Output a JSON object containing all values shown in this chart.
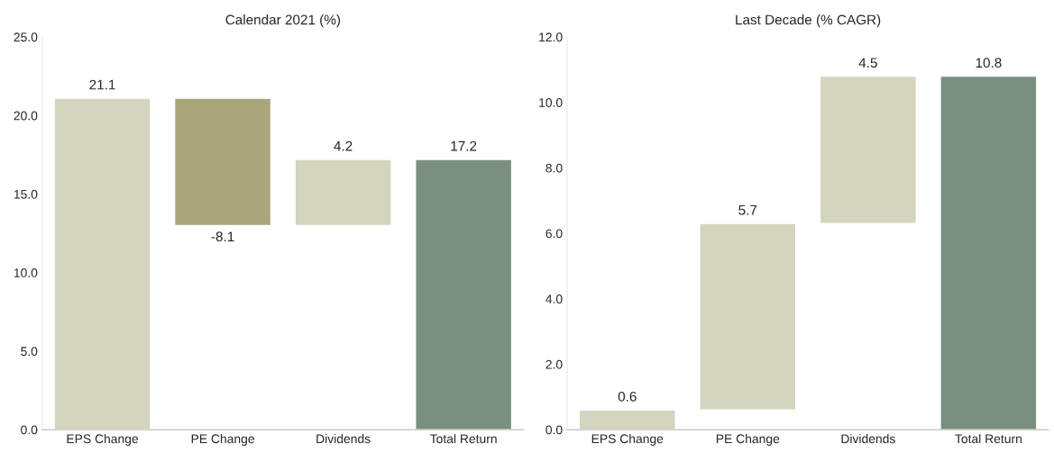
{
  "chart_data": [
    {
      "type": "bar",
      "title": "Calendar 2021 (%)",
      "categories": [
        "EPS Change",
        "PE Change",
        "Dividends",
        "Total Return"
      ],
      "values": [
        21.1,
        -8.1,
        4.2,
        17.2
      ],
      "base": [
        0,
        21.1,
        13.0,
        0
      ],
      "colors": [
        "#d4d4bf",
        "#a8a67a",
        "#d4d4bf",
        "#7a8f7f"
      ],
      "ylim": [
        0,
        25
      ],
      "yticks": [
        {
          "value": 0,
          "label": "0.0"
        },
        {
          "value": 5,
          "label": "5.0"
        },
        {
          "value": 10,
          "label": "10.0"
        },
        {
          "value": 15,
          "label": "15.0"
        },
        {
          "value": 20,
          "label": "20.0"
        },
        {
          "value": 25,
          "label": "25.0"
        }
      ],
      "data_labels": true,
      "grid": false,
      "legend": false
    },
    {
      "type": "bar",
      "title": "Last Decade (% CAGR)",
      "categories": [
        "EPS Change",
        "PE Change",
        "Dividends",
        "Total Return"
      ],
      "values": [
        0.6,
        5.7,
        4.5,
        10.8
      ],
      "base": [
        0,
        0.6,
        6.3,
        0
      ],
      "colors": [
        "#d4d4bf",
        "#d4d4bf",
        "#d4d4bf",
        "#7a8f7f"
      ],
      "ylim": [
        0,
        12
      ],
      "yticks": [
        {
          "value": 0,
          "label": "0.0"
        },
        {
          "value": 2,
          "label": "2.0"
        },
        {
          "value": 4,
          "label": "4.0"
        },
        {
          "value": 6,
          "label": "6.0"
        },
        {
          "value": 8,
          "label": "8.0"
        },
        {
          "value": 10,
          "label": "10.0"
        },
        {
          "value": 12,
          "label": "12.0"
        }
      ],
      "data_labels": true,
      "grid": false,
      "legend": false
    }
  ]
}
